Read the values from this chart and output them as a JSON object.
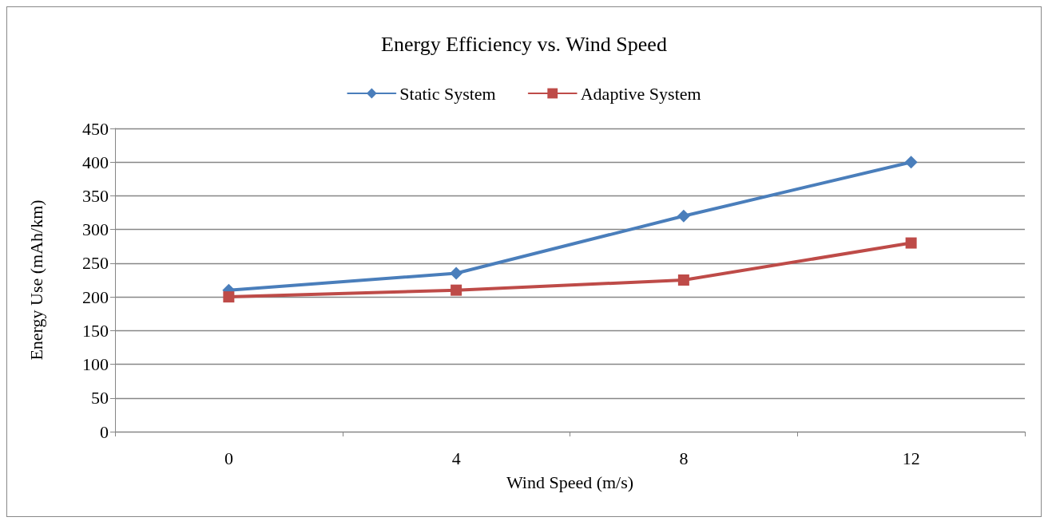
{
  "chart_data": {
    "type": "line",
    "title": "Energy Efficiency vs. Wind Speed",
    "xlabel": "Wind Speed (m/s)",
    "ylabel": "Energy Use (mAh/km)",
    "categories": [
      "0",
      "4",
      "8",
      "12"
    ],
    "series": [
      {
        "name": "Static System",
        "color": "#4a7ebb",
        "marker": "diamond",
        "values": [
          210,
          235,
          320,
          400
        ]
      },
      {
        "name": "Adaptive System",
        "color": "#be4b48",
        "marker": "square",
        "values": [
          200,
          210,
          225,
          280
        ]
      }
    ],
    "ylim": [
      0,
      450
    ],
    "yticks": [
      0,
      50,
      100,
      150,
      200,
      250,
      300,
      350,
      400,
      450
    ],
    "grid": "y",
    "legend": "top",
    "line_style": "solid"
  }
}
